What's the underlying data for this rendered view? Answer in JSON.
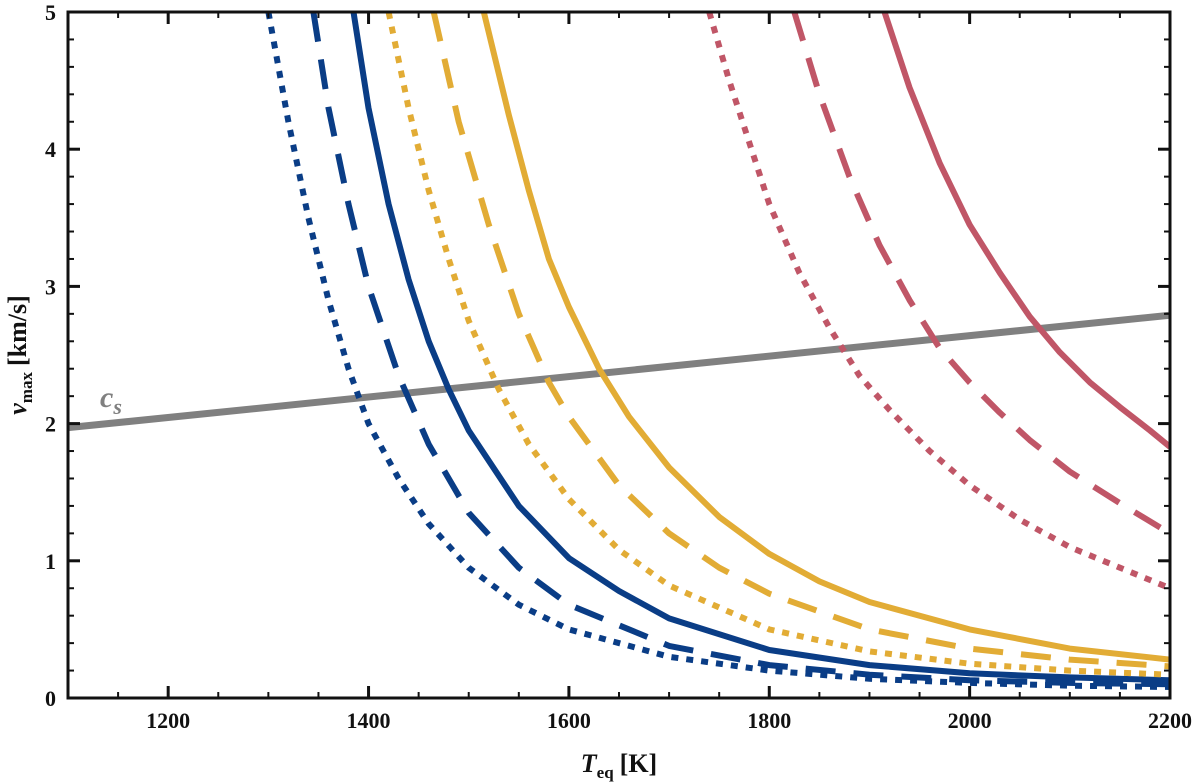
{
  "chart_data": {
    "type": "line",
    "title": "",
    "xlabel": {
      "main": "T",
      "sub": "eq",
      "unit": "[K]"
    },
    "ylabel": {
      "main": "v",
      "sub": "max",
      "unit": "[km/s]"
    },
    "xlim": [
      1100,
      2200
    ],
    "ylim": [
      0,
      5
    ],
    "xticks": [
      1200,
      1400,
      1600,
      1800,
      2000,
      2200
    ],
    "yticks": [
      0,
      1,
      2,
      3,
      4,
      5
    ],
    "xtick_labels": [
      "1200",
      "1400",
      "1600",
      "1800",
      "2000",
      "2200"
    ],
    "ytick_labels": [
      "0",
      "1",
      "2",
      "3",
      "4",
      "5"
    ],
    "grid": false,
    "annotation": {
      "main": "c",
      "sub": "s",
      "x": 1150,
      "y": 2.17,
      "color": "#808080"
    },
    "series": [
      {
        "name": "sound-speed",
        "color": "#808080",
        "style": "solid",
        "x": [
          1100,
          2200
        ],
        "y": [
          1.97,
          2.79
        ]
      },
      {
        "name": "blue-dotted",
        "color": "#0a3d86",
        "style": "dotted",
        "x": [
          1300,
          1320,
          1340,
          1360,
          1380,
          1400,
          1430,
          1460,
          1500,
          1550,
          1600,
          1700,
          1800,
          1900,
          2000,
          2100,
          2200
        ],
        "y": [
          5.0,
          4.2,
          3.5,
          2.9,
          2.4,
          2.0,
          1.6,
          1.27,
          0.95,
          0.68,
          0.5,
          0.3,
          0.2,
          0.14,
          0.11,
          0.09,
          0.08
        ]
      },
      {
        "name": "blue-dashed",
        "color": "#0a3d86",
        "style": "dashed",
        "x": [
          1345,
          1360,
          1380,
          1400,
          1430,
          1460,
          1500,
          1550,
          1600,
          1700,
          1800,
          1900,
          2000,
          2100,
          2200
        ],
        "y": [
          5.0,
          4.3,
          3.6,
          3.0,
          2.35,
          1.85,
          1.35,
          0.95,
          0.68,
          0.38,
          0.24,
          0.17,
          0.13,
          0.11,
          0.1
        ]
      },
      {
        "name": "blue-solid",
        "color": "#0a3d86",
        "style": "solid",
        "x": [
          1385,
          1400,
          1420,
          1440,
          1460,
          1480,
          1500,
          1550,
          1600,
          1650,
          1700,
          1800,
          1900,
          2000,
          2100,
          2200
        ],
        "y": [
          5.0,
          4.3,
          3.6,
          3.05,
          2.6,
          2.25,
          1.95,
          1.4,
          1.02,
          0.78,
          0.58,
          0.35,
          0.24,
          0.18,
          0.15,
          0.13
        ]
      },
      {
        "name": "yellow-dotted",
        "color": "#e2ac35",
        "style": "dotted",
        "x": [
          1420,
          1440,
          1460,
          1480,
          1500,
          1530,
          1560,
          1600,
          1650,
          1700,
          1800,
          1900,
          2000,
          2100,
          2200
        ],
        "y": [
          5.0,
          4.3,
          3.7,
          3.2,
          2.75,
          2.25,
          1.85,
          1.45,
          1.08,
          0.82,
          0.5,
          0.34,
          0.25,
          0.2,
          0.17
        ]
      },
      {
        "name": "yellow-dashed",
        "color": "#e2ac35",
        "style": "dashed",
        "x": [
          1465,
          1490,
          1520,
          1550,
          1580,
          1600,
          1650,
          1700,
          1750,
          1800,
          1900,
          2000,
          2100,
          2200
        ],
        "y": [
          5.0,
          4.2,
          3.45,
          2.8,
          2.3,
          2.05,
          1.55,
          1.2,
          0.95,
          0.76,
          0.5,
          0.36,
          0.28,
          0.23
        ]
      },
      {
        "name": "yellow-solid",
        "color": "#e2ac35",
        "style": "solid",
        "x": [
          1515,
          1540,
          1560,
          1580,
          1600,
          1630,
          1660,
          1700,
          1750,
          1800,
          1850,
          1900,
          2000,
          2100,
          2200
        ],
        "y": [
          5.0,
          4.25,
          3.7,
          3.2,
          2.85,
          2.4,
          2.05,
          1.68,
          1.32,
          1.05,
          0.85,
          0.7,
          0.5,
          0.36,
          0.28
        ]
      },
      {
        "name": "red-dotted",
        "color": "#c05667",
        "style": "dotted",
        "x": [
          1740,
          1760,
          1780,
          1800,
          1830,
          1860,
          1890,
          1920,
          1960,
          2000,
          2050,
          2100,
          2150,
          2200
        ],
        "y": [
          5.0,
          4.5,
          4.05,
          3.6,
          3.1,
          2.7,
          2.35,
          2.1,
          1.8,
          1.55,
          1.3,
          1.1,
          0.95,
          0.8
        ]
      },
      {
        "name": "red-dashed",
        "color": "#c05667",
        "style": "dashed",
        "x": [
          1825,
          1850,
          1880,
          1910,
          1940,
          1970,
          2000,
          2030,
          2060,
          2100,
          2150,
          2200
        ],
        "y": [
          5.0,
          4.4,
          3.8,
          3.3,
          2.9,
          2.55,
          2.3,
          2.08,
          1.88,
          1.65,
          1.42,
          1.2
        ]
      },
      {
        "name": "red-solid",
        "color": "#c05667",
        "style": "solid",
        "x": [
          1915,
          1940,
          1970,
          2000,
          2030,
          2060,
          2090,
          2120,
          2150,
          2180,
          2200
        ],
        "y": [
          5.0,
          4.45,
          3.9,
          3.45,
          3.1,
          2.78,
          2.52,
          2.3,
          2.12,
          1.95,
          1.83
        ]
      }
    ]
  }
}
